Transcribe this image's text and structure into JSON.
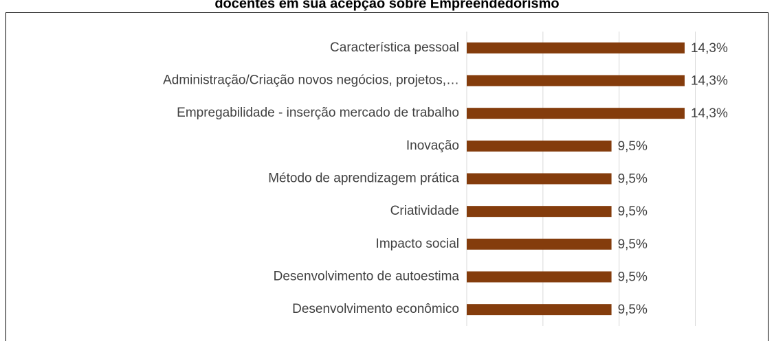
{
  "chart_data": {
    "type": "bar",
    "orientation": "horizontal",
    "title": "docentes em sua acepção sobre Empreendedorismo",
    "categories": [
      "Característica pessoal",
      "Administração/Criação novos negócios, projetos,…",
      "Empregabilidade - inserção mercado de trabalho",
      "Inovação",
      "Método de aprendizagem prática",
      "Criatividade",
      "Impacto social",
      "Desenvolvimento de autoestima",
      "Desenvolvimento econômico"
    ],
    "values": [
      14.3,
      14.3,
      14.3,
      9.5,
      9.5,
      9.5,
      9.5,
      9.5,
      9.5
    ],
    "value_labels": [
      "14,3%",
      "14,3%",
      "14,3%",
      "9,5%",
      "9,5%",
      "9,5%",
      "9,5%",
      "9,5%",
      "9,5%"
    ],
    "color": "#843c0c",
    "xlim": [
      0,
      15
    ],
    "xticks": [
      0,
      5,
      10,
      15
    ],
    "grid": true
  }
}
